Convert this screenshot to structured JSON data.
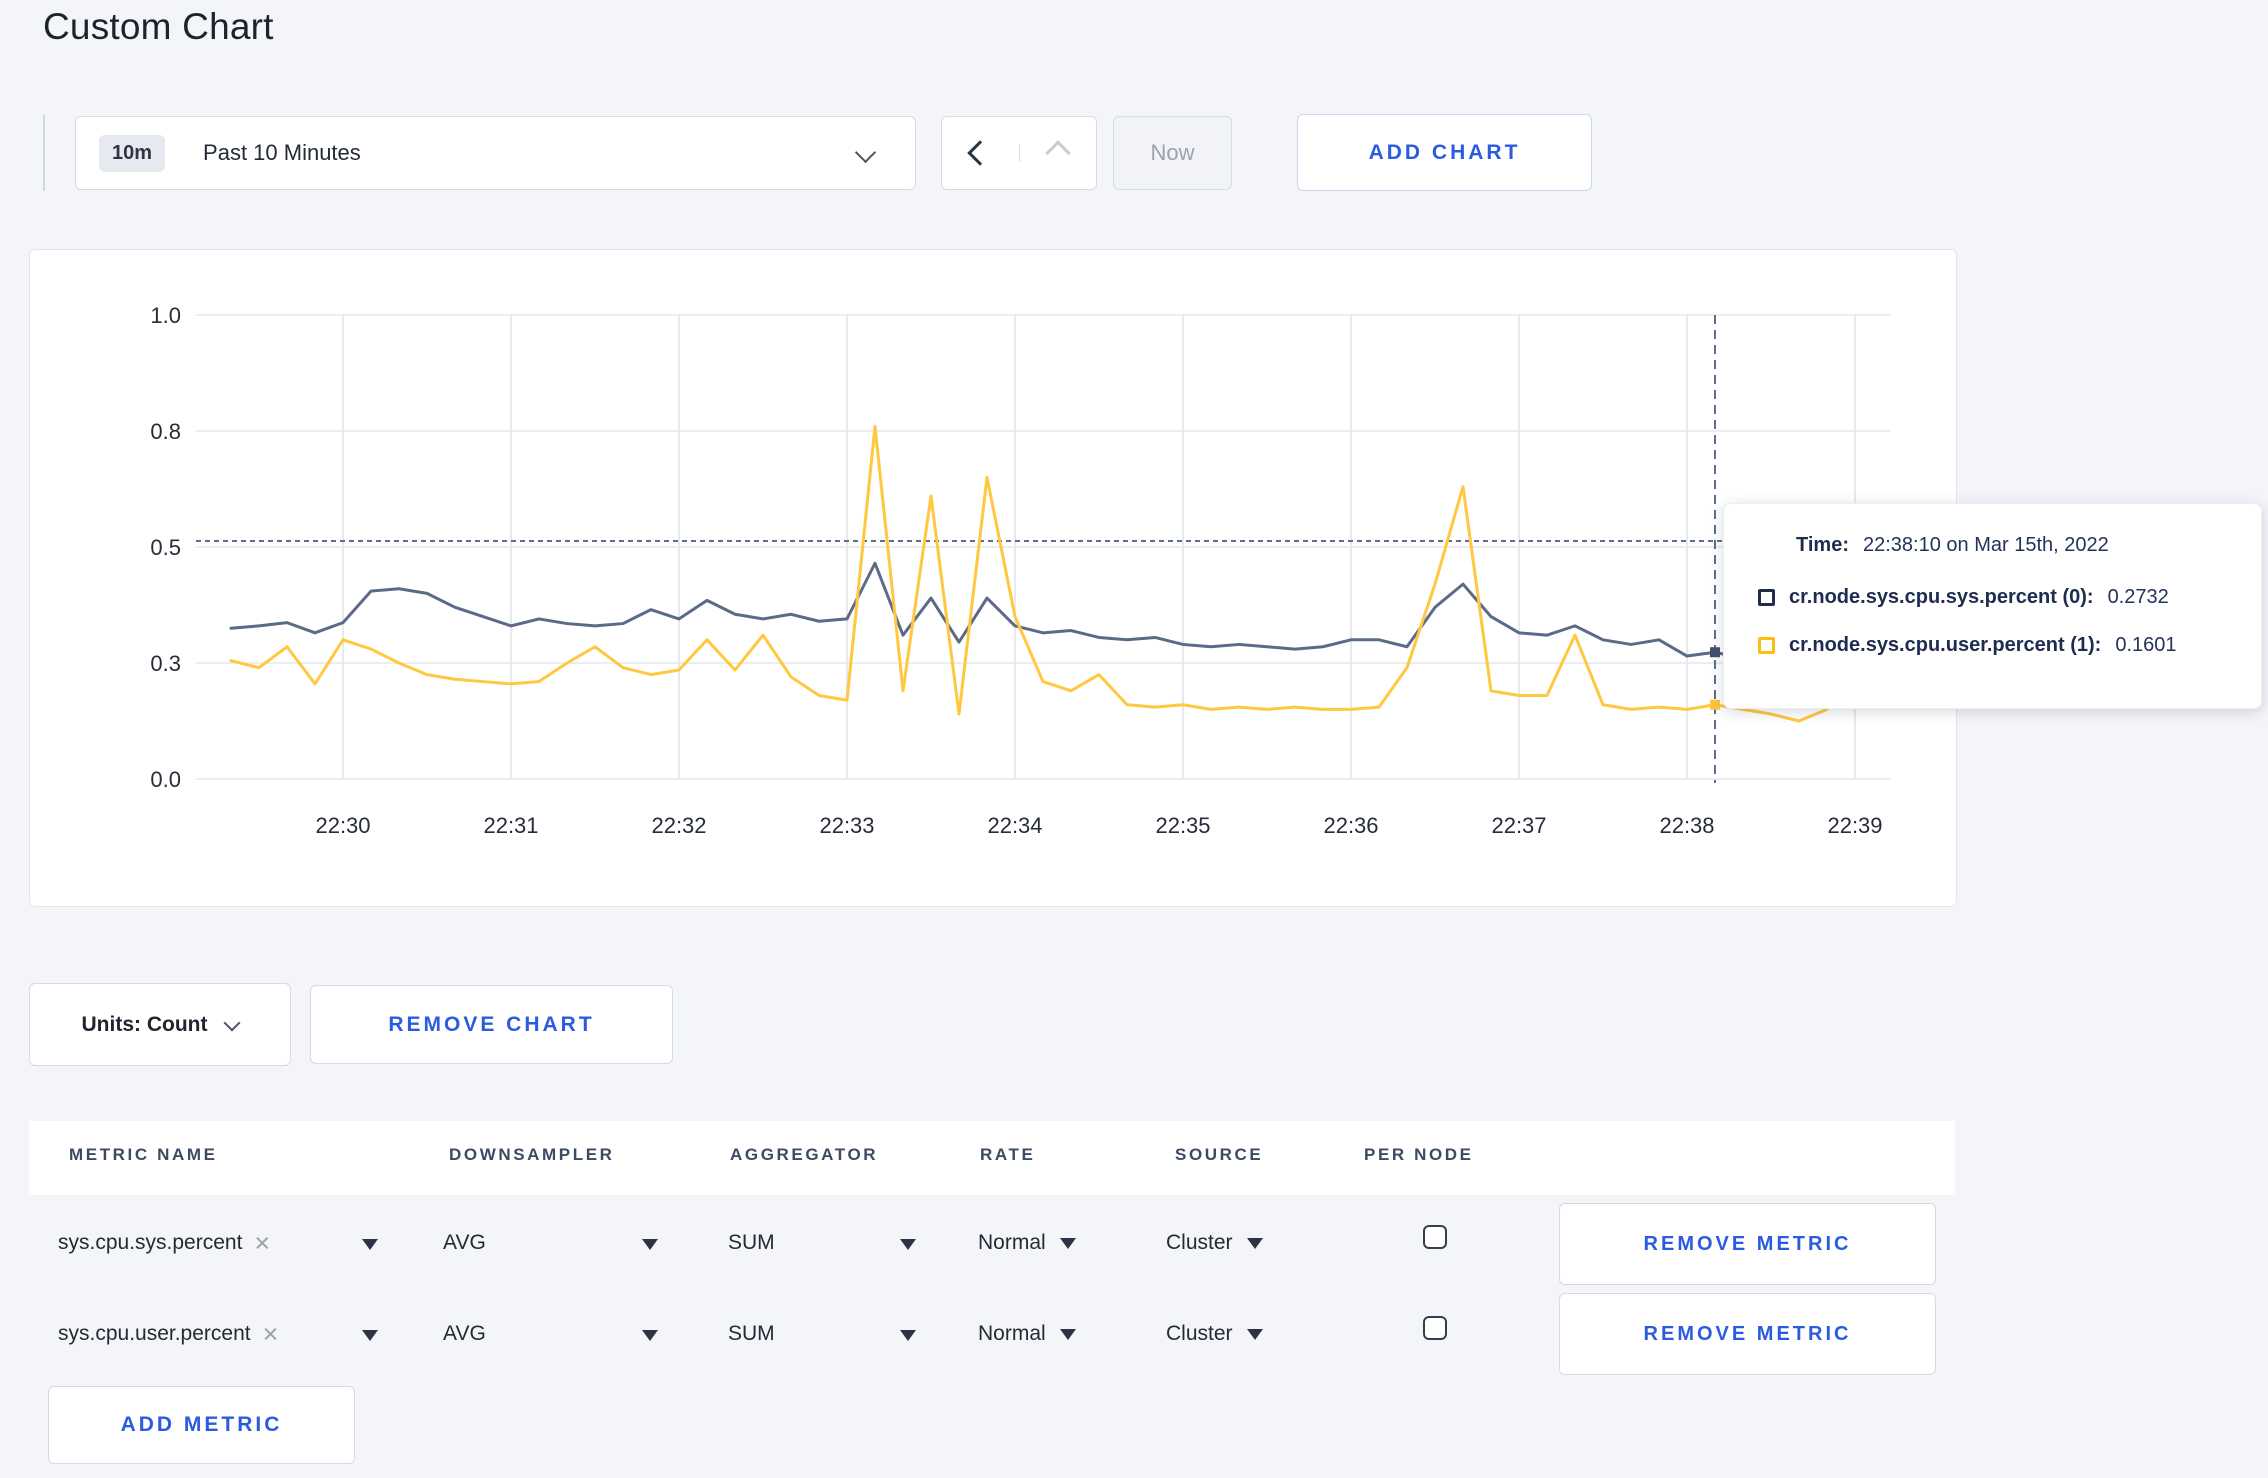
{
  "page_title": "Custom Chart",
  "toolbar": {
    "time_window_badge": "10m",
    "time_window_label": "Past 10 Minutes",
    "now_label": "Now",
    "add_chart_label": "ADD CHART"
  },
  "chart_data": {
    "type": "line",
    "title": "",
    "xlabel": "",
    "ylabel": "",
    "ylim": [
      0,
      1
    ],
    "grid": true,
    "y_tick_labels": [
      "1.0",
      "0.8",
      "0.5",
      "0.3",
      "0.0"
    ],
    "y_tick_values": [
      1.0,
      0.75,
      0.5,
      0.25,
      0.0
    ],
    "x_tick_labels": [
      "22:30",
      "22:31",
      "22:32",
      "22:33",
      "22:34",
      "22:35",
      "22:36",
      "22:37",
      "22:38",
      "22:39"
    ],
    "x_start_time": "22:29:20",
    "x_interval_seconds": 10,
    "series": [
      {
        "name": "cr.node.sys.cpu.sys.percent",
        "color": "#5b6b87",
        "dot_color": "#44506e",
        "values": [
          0.325,
          0.33,
          0.337,
          0.315,
          0.337,
          0.405,
          0.41,
          0.4,
          0.37,
          0.35,
          0.33,
          0.345,
          0.335,
          0.33,
          0.335,
          0.365,
          0.345,
          0.385,
          0.355,
          0.345,
          0.355,
          0.34,
          0.345,
          0.465,
          0.31,
          0.39,
          0.295,
          0.39,
          0.33,
          0.315,
          0.32,
          0.305,
          0.3,
          0.305,
          0.29,
          0.285,
          0.29,
          0.285,
          0.28,
          0.285,
          0.3,
          0.3,
          0.285,
          0.37,
          0.42,
          0.35,
          0.315,
          0.31,
          0.33,
          0.3,
          0.29,
          0.3,
          0.265,
          0.2732,
          0.26,
          0.27,
          0.3,
          0.31,
          0.295,
          0.31
        ]
      },
      {
        "name": "cr.node.sys.cpu.user.percent",
        "color": "#ffc840",
        "dot_color": "#fdc53e",
        "values": [
          0.255,
          0.24,
          0.285,
          0.205,
          0.3,
          0.28,
          0.25,
          0.225,
          0.215,
          0.21,
          0.205,
          0.21,
          0.25,
          0.285,
          0.24,
          0.225,
          0.235,
          0.3,
          0.235,
          0.31,
          0.22,
          0.18,
          0.17,
          0.76,
          0.19,
          0.61,
          0.14,
          0.65,
          0.35,
          0.21,
          0.19,
          0.225,
          0.16,
          0.155,
          0.16,
          0.15,
          0.155,
          0.15,
          0.155,
          0.15,
          0.15,
          0.155,
          0.24,
          0.42,
          0.63,
          0.19,
          0.18,
          0.18,
          0.31,
          0.16,
          0.15,
          0.155,
          0.15,
          0.1601,
          0.15,
          0.14,
          0.125,
          0.15,
          0.27,
          0.19
        ]
      }
    ],
    "crosshair": {
      "x_index": 53,
      "time": "22:38:10",
      "hline_value": 0.513
    },
    "legend_position": "tooltip"
  },
  "tooltip": {
    "time_label": "Time:",
    "time_value": "22:38:10 on Mar 15th, 2022",
    "series": [
      {
        "label": "cr.node.sys.cpu.sys.percent (0):",
        "value": "0.2732",
        "swatch_color": "#222e49"
      },
      {
        "label": "cr.node.sys.cpu.user.percent (1):",
        "value": "0.1601",
        "swatch_color": "#fdbe13"
      }
    ]
  },
  "controls": {
    "units_label": "Units: Count",
    "remove_chart_label": "REMOVE CHART"
  },
  "metrics_table": {
    "headers": [
      "METRIC NAME",
      "DOWNSAMPLER",
      "AGGREGATOR",
      "RATE",
      "SOURCE",
      "PER NODE"
    ],
    "rows": [
      {
        "metric": "sys.cpu.sys.percent",
        "remove_tag": "×",
        "downsampler": "AVG",
        "aggregator": "SUM",
        "rate": "Normal",
        "source": "Cluster",
        "per_node_checked": false,
        "remove_label": "REMOVE METRIC"
      },
      {
        "metric": "sys.cpu.user.percent",
        "remove_tag": "×",
        "downsampler": "AVG",
        "aggregator": "SUM",
        "rate": "Normal",
        "source": "Cluster",
        "per_node_checked": false,
        "remove_label": "REMOVE METRIC"
      }
    ],
    "add_metric_label": "ADD METRIC"
  },
  "colors": {
    "accent_blue": "#2b5ce0",
    "page_background": "#f4f5f9",
    "series_sys": "#5b6b87",
    "series_user": "#ffc840",
    "grid_line": "#ebedf1",
    "crosshair": "#5d7089"
  }
}
